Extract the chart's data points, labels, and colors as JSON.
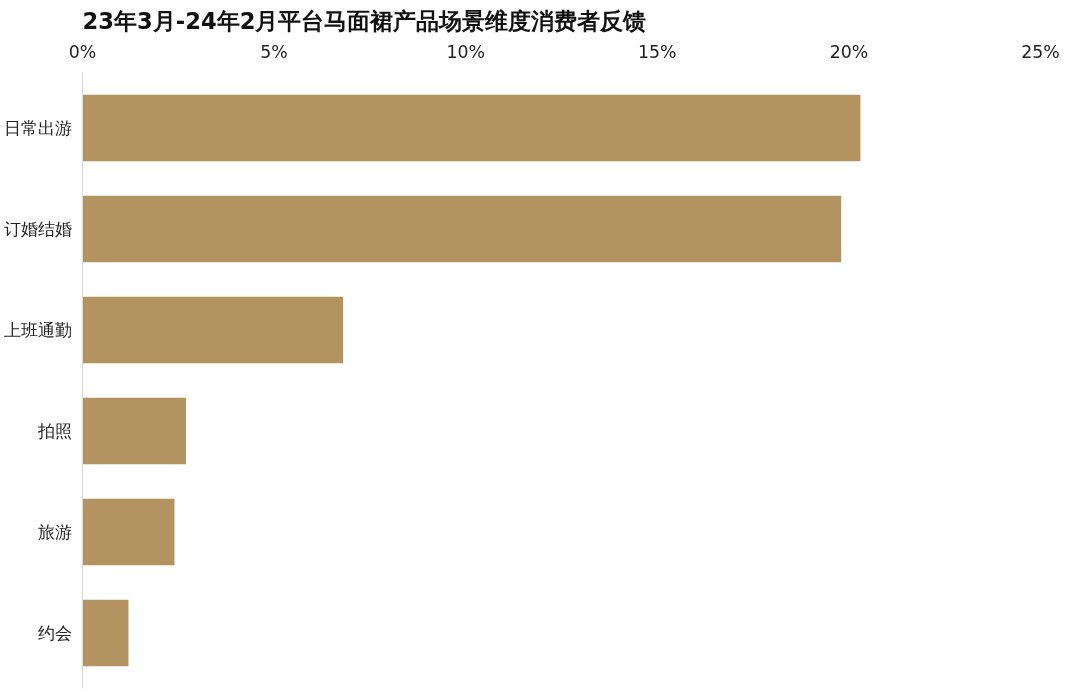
{
  "chart_data": {
    "type": "bar",
    "orientation": "horizontal",
    "title": "23年3月-24年2月平台马面裙产品场景维度消费者反馈",
    "categories": [
      "日常出游",
      "订婚结婚",
      "上班通勤",
      "拍照",
      "旅游",
      "约会"
    ],
    "values": [
      20.3,
      19.8,
      6.8,
      2.7,
      2.4,
      1.2
    ],
    "color": "#b39460",
    "xlim": [
      0,
      25
    ],
    "xticks": [
      {
        "value": 0,
        "label": "0%"
      },
      {
        "value": 5,
        "label": "5%"
      },
      {
        "value": 10,
        "label": "10%"
      },
      {
        "value": 15,
        "label": "15%"
      },
      {
        "value": 20,
        "label": "20%"
      },
      {
        "value": 25,
        "label": "25%"
      }
    ],
    "grid": false
  }
}
